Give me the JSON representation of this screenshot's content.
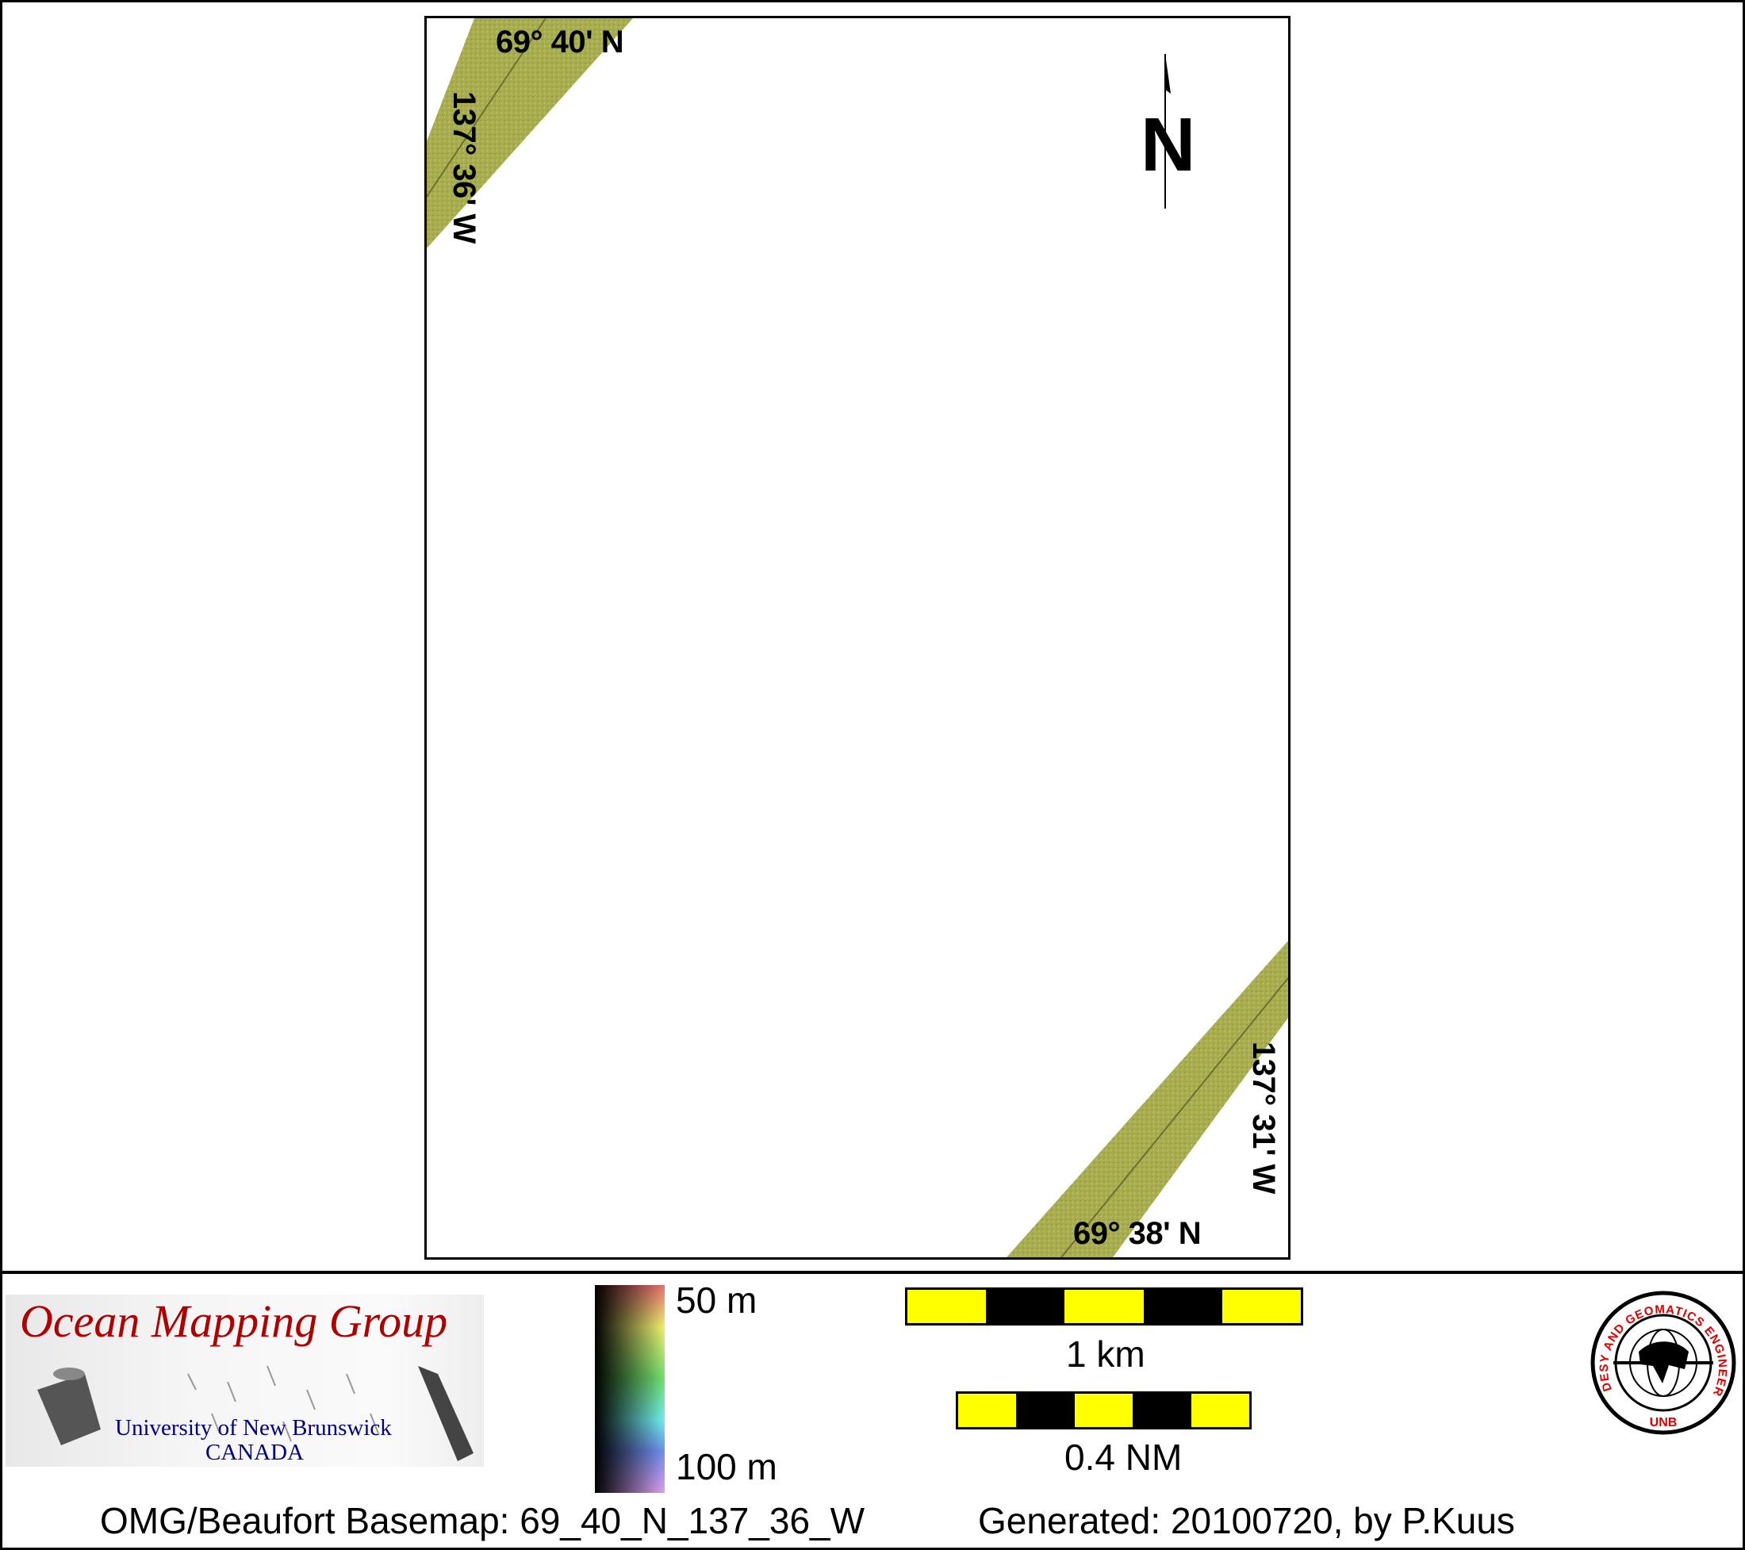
{
  "map": {
    "labels": {
      "top_lat": "69° 40' N",
      "left_lon": "137° 36' W",
      "right_lon": "137° 31' W",
      "bottom_lat": "69° 38' N"
    },
    "north_label": "N",
    "swath_color": "#a8ad4f"
  },
  "legend": {
    "logo": {
      "title": "Ocean Mapping Group",
      "university": "University of New Brunswick",
      "country": "CANADA"
    },
    "colorbar": {
      "top_label": "50 m",
      "bottom_label": "100 m"
    },
    "scale_km": {
      "label": "1 km"
    },
    "scale_nm": {
      "label": "0.4 NM"
    },
    "unb_seal": {
      "ring_text": "GEODESY AND GEOMATICS ENGINEERING",
      "bottom_text": "UNB"
    }
  },
  "footer": {
    "basemap": "OMG/Beaufort Basemap: 69_40_N_137_36_W",
    "generated": "Generated: 20100720, by P.Kuus"
  }
}
